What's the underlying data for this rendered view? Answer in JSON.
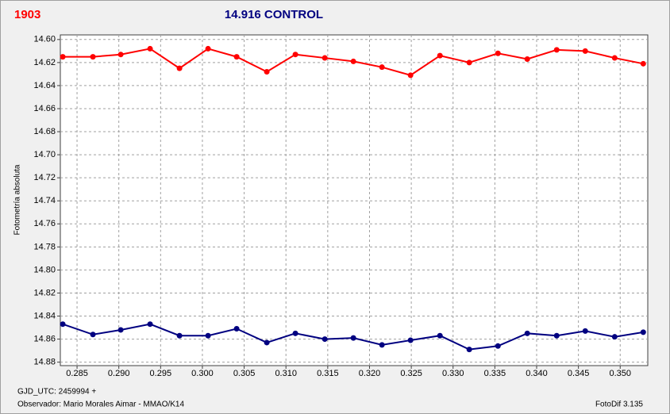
{
  "chart_data": {
    "type": "line",
    "title": "14.916 CONTROL",
    "title_color": "#000080",
    "star_label": "1903",
    "star_label_color": "#ff0000",
    "y_label": "Fotometría absoluta",
    "footer_left_1": "GJD_UTC: 2459994 +",
    "footer_left_2": "Observador: Mario Morales Aimar - MMAO/K14",
    "footer_right": "FotoDif 3.135",
    "grid": true,
    "y_inverted": true,
    "xlim": [
      0.283,
      0.3533
    ],
    "ylim": [
      14.596,
      14.883
    ],
    "xticks": [
      {
        "value": 0.285,
        "label": "0.285"
      },
      {
        "value": 0.29,
        "label": "0.290"
      },
      {
        "value": 0.295,
        "label": "0.295"
      },
      {
        "value": 0.3,
        "label": "0.300"
      },
      {
        "value": 0.305,
        "label": "0.305"
      },
      {
        "value": 0.31,
        "label": "0.310"
      },
      {
        "value": 0.315,
        "label": "0.315"
      },
      {
        "value": 0.32,
        "label": "0.320"
      },
      {
        "value": 0.325,
        "label": "0.325"
      },
      {
        "value": 0.33,
        "label": "0.330"
      },
      {
        "value": 0.335,
        "label": "0.335"
      },
      {
        "value": 0.34,
        "label": "0.340"
      },
      {
        "value": 0.345,
        "label": "0.345"
      },
      {
        "value": 0.35,
        "label": "0.350"
      }
    ],
    "yticks": [
      {
        "value": 14.6,
        "label": "14.60"
      },
      {
        "value": 14.62,
        "label": "14.62"
      },
      {
        "value": 14.64,
        "label": "14.64"
      },
      {
        "value": 14.66,
        "label": "14.66"
      },
      {
        "value": 14.68,
        "label": "14.68"
      },
      {
        "value": 14.7,
        "label": "14.70"
      },
      {
        "value": 14.72,
        "label": "14.72"
      },
      {
        "value": 14.74,
        "label": "14.74"
      },
      {
        "value": 14.76,
        "label": "14.76"
      },
      {
        "value": 14.78,
        "label": "14.78"
      },
      {
        "value": 14.8,
        "label": "14.80"
      },
      {
        "value": 14.82,
        "label": "14.82"
      },
      {
        "value": 14.84,
        "label": "14.84"
      },
      {
        "value": 14.86,
        "label": "14.86"
      },
      {
        "value": 14.88,
        "label": "14.88"
      }
    ],
    "x": [
      0.28329,
      0.2869,
      0.29023,
      0.29374,
      0.29726,
      0.30068,
      0.3041,
      0.30771,
      0.31113,
      0.31465,
      0.31807,
      0.32149,
      0.32491,
      0.32843,
      0.33194,
      0.33537,
      0.33888,
      0.3424,
      0.34582,
      0.34934,
      0.35276
    ],
    "series": [
      {
        "color": "#ff0000",
        "values": [
          14.615,
          14.615,
          14.613,
          14.608,
          14.625,
          14.608,
          14.615,
          14.628,
          14.613,
          14.616,
          14.619,
          14.624,
          14.631,
          14.614,
          14.62,
          14.612,
          14.617,
          14.609,
          14.61,
          14.616,
          14.621
        ]
      },
      {
        "color": "#000080",
        "values": [
          14.847,
          14.856,
          14.852,
          14.847,
          14.857,
          14.857,
          14.851,
          14.863,
          14.855,
          14.86,
          14.859,
          14.865,
          14.861,
          14.857,
          14.869,
          14.866,
          14.855,
          14.857,
          14.853,
          14.858,
          14.854
        ]
      }
    ]
  }
}
